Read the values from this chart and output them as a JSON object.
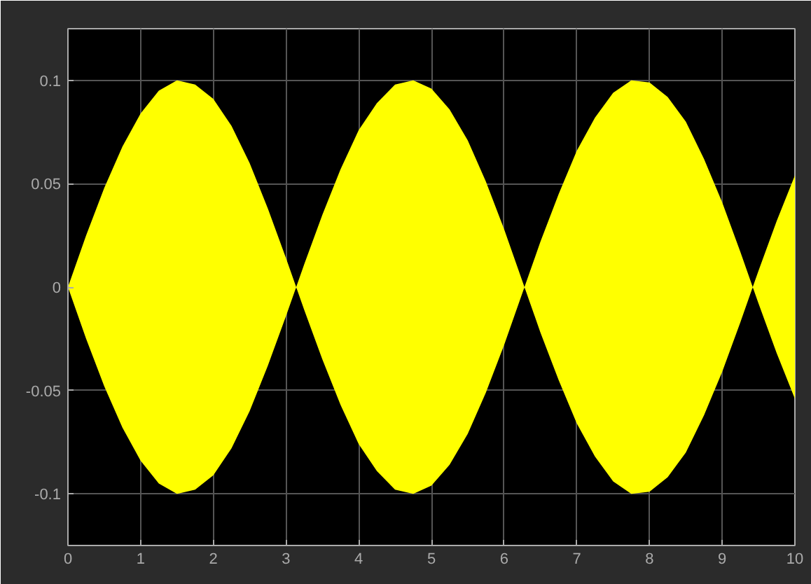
{
  "chart_data": {
    "type": "area",
    "x": [
      0,
      0.25,
      0.5,
      0.75,
      1,
      1.25,
      1.5,
      1.75,
      2,
      2.25,
      2.5,
      2.75,
      3,
      3.14,
      3.25,
      3.5,
      3.75,
      4,
      4.25,
      4.5,
      4.75,
      5,
      5.25,
      5.5,
      5.75,
      6,
      6.28,
      6.5,
      6.75,
      7,
      7.25,
      7.5,
      7.75,
      8,
      8.25,
      8.5,
      8.75,
      9,
      9.25,
      9.42,
      9.5,
      9.75,
      10
    ],
    "series": [
      {
        "color": "#ffff00",
        "values": [
          0,
          0.025,
          0.048,
          0.068,
          0.084,
          0.095,
          0.1,
          0.098,
          0.091,
          0.078,
          0.06,
          0.038,
          0.014,
          0,
          0.011,
          0.035,
          0.057,
          0.076,
          0.089,
          0.098,
          0.1,
          0.096,
          0.086,
          0.071,
          0.051,
          0.028,
          0,
          0.022,
          0.045,
          0.066,
          0.082,
          0.094,
          0.1,
          0.099,
          0.092,
          0.08,
          0.062,
          0.041,
          0.017,
          0,
          0.008,
          0.032,
          0.054
        ]
      },
      {
        "color": "#ffff00",
        "values": [
          0,
          -0.025,
          -0.048,
          -0.068,
          -0.084,
          -0.095,
          -0.1,
          -0.098,
          -0.091,
          -0.078,
          -0.06,
          -0.038,
          -0.014,
          0,
          -0.011,
          -0.035,
          -0.057,
          -0.076,
          -0.089,
          -0.098,
          -0.1,
          -0.096,
          -0.086,
          -0.071,
          -0.051,
          -0.028,
          0,
          -0.022,
          -0.045,
          -0.066,
          -0.082,
          -0.094,
          -0.1,
          -0.099,
          -0.092,
          -0.08,
          -0.062,
          -0.041,
          -0.017,
          0,
          -0.008,
          -0.032,
          -0.054
        ]
      }
    ],
    "xlim": [
      0,
      10
    ],
    "xticks": [
      0,
      1,
      2,
      3,
      4,
      5,
      6,
      7,
      8,
      9,
      10
    ],
    "ylim": [
      -0.125,
      0.125
    ],
    "yticks": [
      -0.1,
      -0.05,
      0,
      0.05,
      0.1
    ],
    "grid": true
  }
}
